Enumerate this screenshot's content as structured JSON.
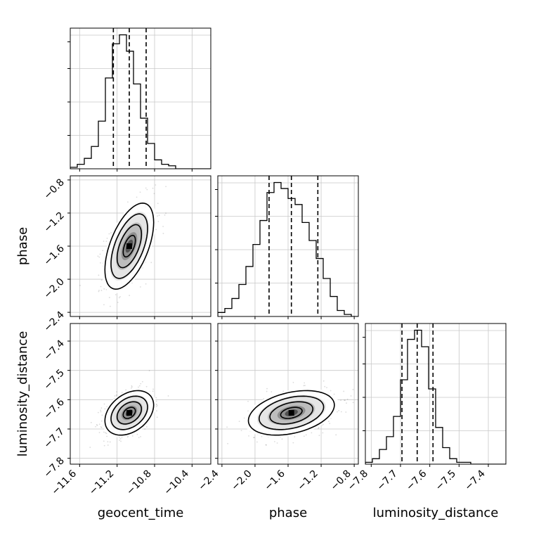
{
  "chart_data": {
    "type": "corner",
    "parameters": [
      "geocent_time",
      "phase",
      "luminosity_distance"
    ],
    "axis_labels": {
      "geocent_time": "geocent_time",
      "phase": "phase",
      "luminosity_distance": "luminosity_distance"
    },
    "ranges": {
      "geocent_time": [
        -11.7,
        -10.2
      ],
      "phase": [
        -2.45,
        -0.75
      ],
      "luminosity_distance": [
        -7.82,
        -7.34
      ]
    },
    "ticks": {
      "geocent_time": {
        "values": [
          -11.6,
          -11.2,
          -10.8,
          -10.4
        ],
        "labels": [
          "−11.6",
          "−11.2",
          "−10.8",
          "−10.4"
        ]
      },
      "phase": {
        "values": [
          -2.4,
          -2.0,
          -1.6,
          -1.2,
          -0.8
        ],
        "labels": [
          "−2.4",
          "−2.0",
          "−1.6",
          "−1.2",
          "−0.8"
        ]
      },
      "luminosity_distance": {
        "values": [
          -7.8,
          -7.7,
          -7.6,
          -7.5,
          -7.4
        ],
        "labels": [
          "−7.8",
          "−7.7",
          "−7.6",
          "−7.5",
          "−7.4"
        ]
      }
    },
    "marginals": {
      "geocent_time": {
        "bin_edges": [
          -11.7,
          -11.625,
          -11.55,
          -11.475,
          -11.4,
          -11.325,
          -11.25,
          -11.175,
          -11.1,
          -11.025,
          -10.95,
          -10.875,
          -10.8,
          -10.725,
          -10.65,
          -10.575,
          -10.5,
          -10.425,
          -10.35,
          -10.275,
          -10.2
        ],
        "counts": [
          1,
          3,
          7,
          15,
          32,
          61,
          84,
          90,
          79,
          57,
          34,
          17,
          6,
          3,
          2,
          0,
          0,
          0,
          0,
          0
        ],
        "quantiles": [
          -11.24,
          -11.07,
          -10.89
        ]
      },
      "phase": {
        "bin_edges": [
          -2.45,
          -2.365,
          -2.28,
          -2.195,
          -2.11,
          -2.025,
          -1.94,
          -1.855,
          -1.77,
          -1.685,
          -1.6,
          -1.515,
          -1.43,
          -1.345,
          -1.26,
          -1.175,
          -1.09,
          -1.005,
          -0.92,
          -0.835,
          -0.75
        ],
        "counts": [
          2,
          4,
          9,
          16,
          25,
          36,
          48,
          62,
          67,
          64,
          59,
          56,
          47,
          38,
          29,
          19,
          10,
          3,
          1,
          0
        ],
        "quantiles": [
          -1.83,
          -1.56,
          -1.24
        ]
      },
      "luminosity_distance": {
        "bin_edges": [
          -7.82,
          -7.796,
          -7.772,
          -7.748,
          -7.724,
          -7.7,
          -7.676,
          -7.652,
          -7.628,
          -7.604,
          -7.58,
          -7.556,
          -7.532,
          -7.508,
          -7.484,
          -7.46,
          -7.436,
          -7.412,
          -7.388,
          -7.364,
          -7.34
        ],
        "counts": [
          1,
          3,
          8,
          15,
          26,
          46,
          68,
          73,
          64,
          41,
          20,
          9,
          3,
          1,
          1,
          0,
          0,
          0,
          0,
          0
        ],
        "quantiles": [
          -7.695,
          -7.643,
          -7.589
        ]
      }
    },
    "joint": [
      {
        "x": "geocent_time",
        "y": "phase",
        "mean": [
          -11.07,
          -1.6
        ],
        "sigma": [
          0.13,
          0.26
        ],
        "rho": 0.55
      },
      {
        "x": "geocent_time",
        "y": "luminosity_distance",
        "mean": [
          -11.07,
          -7.645
        ],
        "sigma": [
          0.13,
          0.038
        ],
        "rho": 0.35
      },
      {
        "x": "phase",
        "y": "luminosity_distance",
        "mean": [
          -1.56,
          -7.645
        ],
        "sigma": [
          0.26,
          0.038
        ],
        "rho": 0.35
      }
    ],
    "grid": true,
    "contour_levels": [
      0.5,
      1.0,
      1.5,
      2.0
    ]
  }
}
